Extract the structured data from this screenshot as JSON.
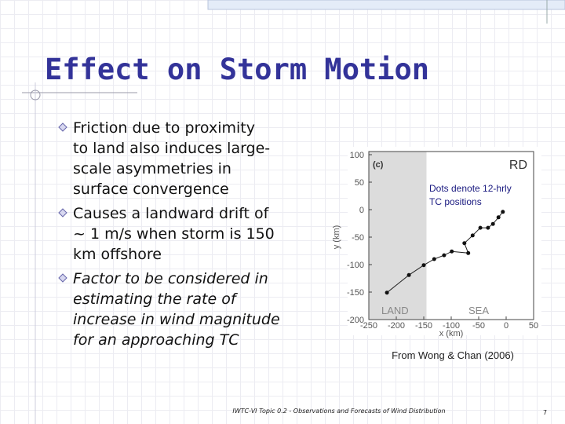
{
  "title": "Effect on Storm Motion",
  "bullets": [
    [
      "Friction due to proximity",
      "to land also induces large-",
      "scale asymmetries in",
      "surface convergence"
    ],
    [
      "Causes a landward drift of",
      "~ 1 m/s when storm is 150",
      "km offshore"
    ],
    [
      "Factor to be considered in",
      "estimating the rate of",
      "increase in wind magnitude",
      "for an approaching TC"
    ]
  ],
  "figure": {
    "type": "line",
    "panel_label": "(c)",
    "case_label": "RD",
    "annotation": [
      "Dots denote 12-hrly",
      "TC positions"
    ],
    "region_labels": [
      "LAND",
      "SEA"
    ],
    "xlabel": "x (km)",
    "ylabel": "y (km)",
    "xlim": [
      -250,
      50
    ],
    "ylim": [
      -200,
      100
    ],
    "xticks": [
      -250,
      -200,
      -150,
      -100,
      -50,
      0,
      50
    ],
    "yticks": [
      -200,
      -150,
      -100,
      -50,
      0,
      50,
      100
    ],
    "x": [
      -217,
      -177,
      -150,
      -131,
      -113,
      -99,
      -69,
      -76,
      -61,
      -47,
      -33,
      -24,
      -14,
      -6
    ],
    "values": [
      -151,
      -119,
      -101,
      -90,
      -83,
      -76,
      -79,
      -61,
      -47,
      -33,
      -33,
      -26,
      -14,
      -4
    ],
    "caption": "From Wong & Chan (2006)"
  },
  "footer": "IWTC-VI Topic 0.2 - Observations and Forecasts of Wind Distribution",
  "page_number": "7"
}
